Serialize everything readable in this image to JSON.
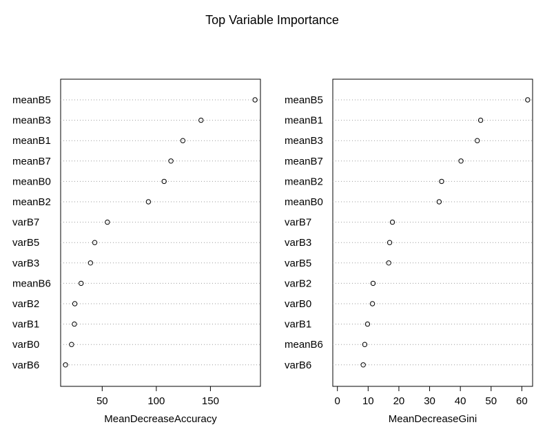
{
  "figure": {
    "title": "Top Variable Importance"
  },
  "chart_data": [
    {
      "type": "scatter",
      "style": "dotchart",
      "xlabel": "MeanDecreaseAccuracy",
      "ylabel": "",
      "xlim": [
        11.6,
        196.2
      ],
      "xticks": [
        50,
        100,
        150
      ],
      "grid": "dotted horizontal lines per category",
      "categories": [
        "meanB5",
        "meanB3",
        "meanB1",
        "meanB7",
        "meanB0",
        "meanB2",
        "varB7",
        "varB5",
        "varB3",
        "meanB6",
        "varB2",
        "varB1",
        "varB0",
        "varB6"
      ],
      "values": [
        191.2,
        141.3,
        124.5,
        113.5,
        107.2,
        92.7,
        54.8,
        43.1,
        39.2,
        30.5,
        24.7,
        24.3,
        21.7,
        16.1
      ]
    },
    {
      "type": "scatter",
      "style": "dotchart",
      "xlabel": "MeanDecreaseGini",
      "ylabel": "",
      "xlim": [
        -1.5,
        63.5
      ],
      "xticks": [
        0,
        10,
        20,
        30,
        40,
        50,
        60
      ],
      "grid": "dotted horizontal lines per category",
      "categories": [
        "meanB5",
        "meanB1",
        "meanB3",
        "meanB7",
        "meanB2",
        "meanB0",
        "varB7",
        "varB3",
        "varB5",
        "varB2",
        "varB0",
        "varB1",
        "meanB6",
        "varB6"
      ],
      "values": [
        61.9,
        46.6,
        45.5,
        40.2,
        33.9,
        33.1,
        17.9,
        17.0,
        16.7,
        11.6,
        11.4,
        9.8,
        8.9,
        8.4
      ]
    }
  ]
}
